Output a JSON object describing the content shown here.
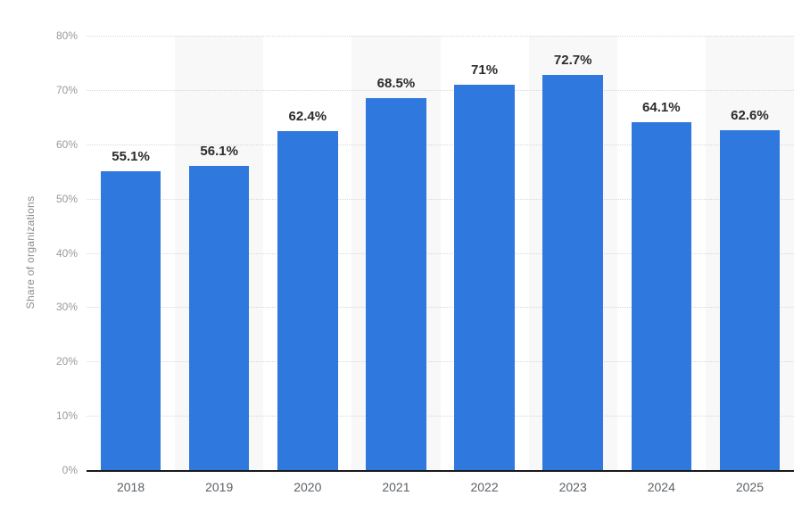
{
  "chart_data": {
    "type": "bar",
    "title": "",
    "categories": [
      "2018",
      "2019",
      "2020",
      "2021",
      "2022",
      "2023",
      "2024",
      "2025"
    ],
    "values": [
      55.1,
      56.1,
      62.4,
      68.5,
      71,
      72.7,
      64.1,
      62.6
    ],
    "value_labels": [
      "55.1%",
      "56.1%",
      "62.4%",
      "68.5%",
      "71%",
      "72.7%",
      "64.1%",
      "62.6%"
    ],
    "xlabel": "",
    "ylabel": "Share of organizations",
    "ylim": [
      0,
      80
    ],
    "yticks": [
      "0%",
      "10%",
      "20%",
      "30%",
      "40%",
      "50%",
      "60%",
      "70%",
      "80%"
    ],
    "grid": "horizontal-dotted",
    "legend": "none",
    "striped_columns": [
      1,
      3,
      5,
      7
    ],
    "colors": {
      "bar": "#2f78de",
      "column_stripe": "#f8f8f9",
      "gridline": "#d7d7d7",
      "axis_line": "#19191b",
      "value_label": "#2b2b2b",
      "tick_label": "#9a9a9a",
      "category_label": "#5c6066",
      "axis_title": "#8d8d8d",
      "background": "#ffffff"
    }
  }
}
